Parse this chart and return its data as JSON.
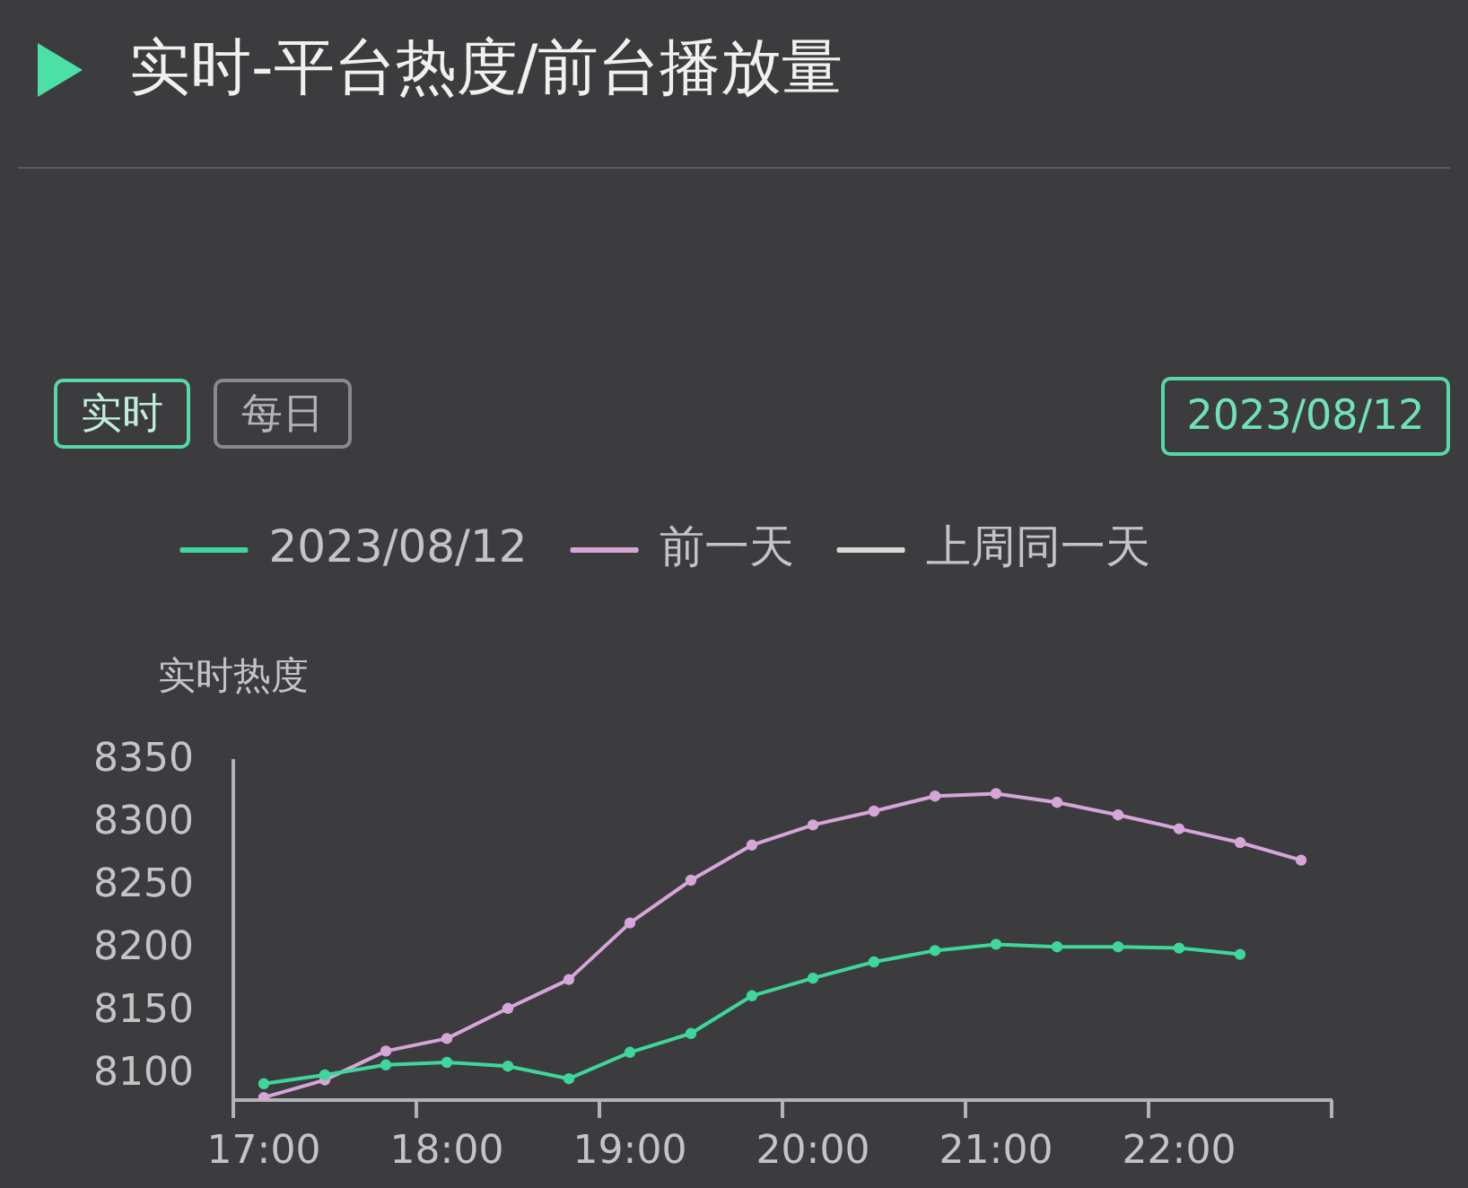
{
  "chart_data": {
    "type": "line",
    "title": "实时-平台热度/前台播放量",
    "ylabel": "实时热度",
    "annotations": [
      "实时",
      "每日",
      "2023/08/12"
    ],
    "categories": [
      "17:00",
      null,
      null,
      "18:00",
      null,
      null,
      "19:00",
      null,
      null,
      "20:00",
      null,
      null,
      "21:00",
      null,
      null,
      "22:00",
      null,
      null
    ],
    "series": [
      {
        "name": "2023/08/12",
        "color": "#3fd69c",
        "values": [
          8093,
          8100,
          8108,
          8110,
          8107,
          8097,
          8118,
          8133,
          8163,
          8177,
          8190,
          8199,
          8204,
          8202,
          8202,
          8201,
          8196,
          null
        ]
      },
      {
        "name": "前一天",
        "color": "#d6a6d8",
        "values": [
          8082,
          8096,
          8119,
          8129,
          8153,
          8176,
          8221,
          8255,
          8283,
          8299,
          8310,
          8322,
          8324,
          8317,
          8307,
          8296,
          8285,
          8271
        ]
      },
      {
        "name": "上周同一天",
        "color": "#d9d9d9",
        "values": [
          null,
          null,
          null,
          null,
          null,
          null,
          null,
          null,
          null,
          null,
          null,
          null,
          null,
          null,
          null,
          null,
          null,
          null
        ]
      }
    ],
    "ylim": [
      8080,
      8350
    ],
    "yticks": [
      8100,
      8150,
      8200,
      8250,
      8300,
      8350
    ],
    "legend": "top",
    "marker": "circle",
    "line_style": "solid",
    "grid": false
  }
}
